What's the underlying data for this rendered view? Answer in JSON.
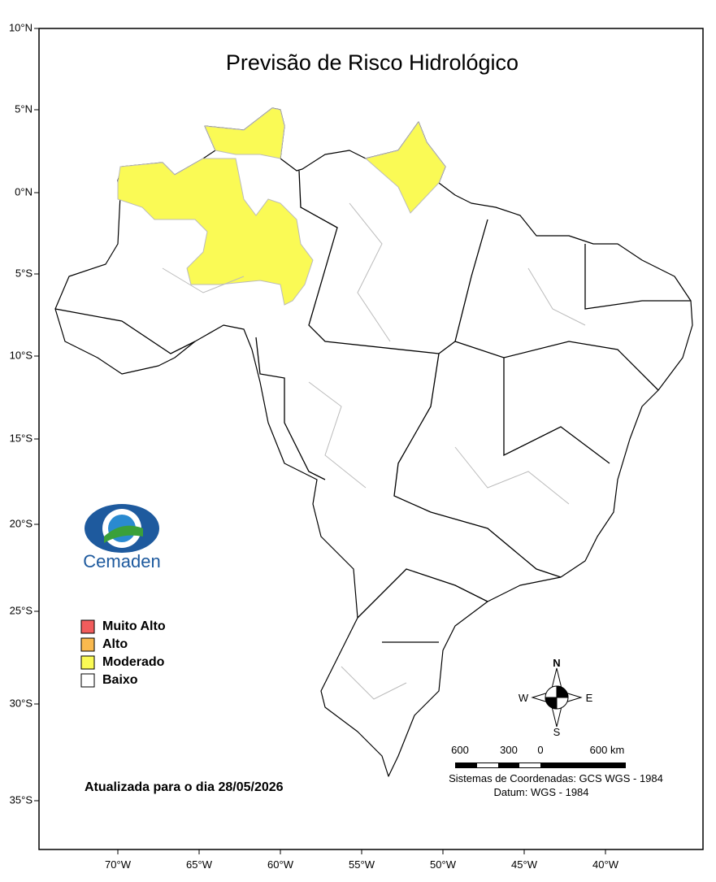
{
  "title": "Previsão de Risco Hidrológico",
  "lat_labels": [
    "10°N",
    "5°N",
    "0°N",
    "5°S",
    "10°S",
    "15°S",
    "20°S",
    "25°S",
    "30°S",
    "35°S"
  ],
  "lon_labels": [
    "70°W",
    "65°W",
    "60°W",
    "55°W",
    "50°W",
    "45°W",
    "40°W"
  ],
  "legend": [
    {
      "label": "Muito Alto",
      "color": "#f25c5c"
    },
    {
      "label": "Alto",
      "color": "#f9b94e"
    },
    {
      "label": "Moderado",
      "color": "#fafa55"
    },
    {
      "label": "Baixo",
      "color": "#ffffff"
    }
  ],
  "logo": "Cemaden",
  "updated": "Atualizada para o dia 28/05/2026",
  "compass": {
    "n": "N",
    "s": "S",
    "e": "E",
    "w": "W"
  },
  "scale_labels": [
    "600",
    "300",
    "0",
    "600 km"
  ],
  "coordinate_system": "Sistemas de Coordenadas: GCS WGS - 1984",
  "datum": "Datum: WGS - 1984"
}
